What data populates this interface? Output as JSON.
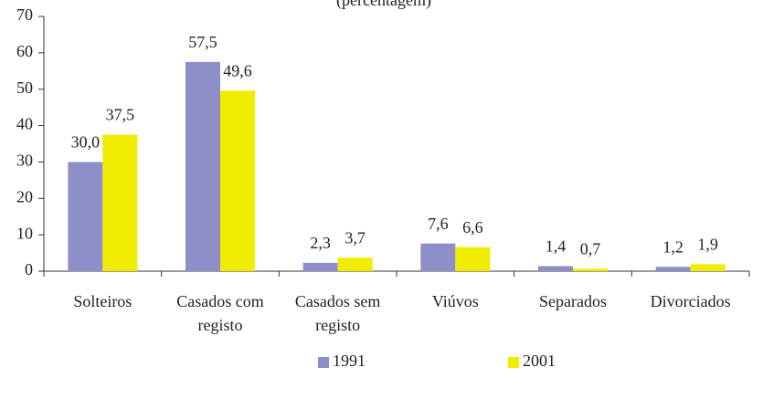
{
  "chart_data": {
    "type": "bar",
    "subtitle": "(percentagem)",
    "categories": [
      "Solteiros",
      "Casados com registo",
      "Casados sem registo",
      "Viúvos",
      "Separados",
      "Divorciados"
    ],
    "series": [
      {
        "name": "1991",
        "color": "#8e8fc9",
        "values": [
          30.0,
          57.5,
          2.3,
          7.6,
          1.4,
          1.2
        ],
        "value_labels": [
          "30,0",
          "57,5",
          "2,3",
          "7,6",
          "1,4",
          "1,2"
        ]
      },
      {
        "name": "2001",
        "color": "#f0ec00",
        "values": [
          37.5,
          49.6,
          3.7,
          6.6,
          0.7,
          1.9
        ],
        "value_labels": [
          "37,5",
          "49,6",
          "3,7",
          "6,6",
          "0,7",
          "1,9"
        ]
      }
    ],
    "ylim": [
      0,
      70
    ],
    "yticks": [
      0,
      10,
      20,
      30,
      40,
      50,
      60,
      70
    ],
    "grid": false,
    "legend": "bottom"
  }
}
